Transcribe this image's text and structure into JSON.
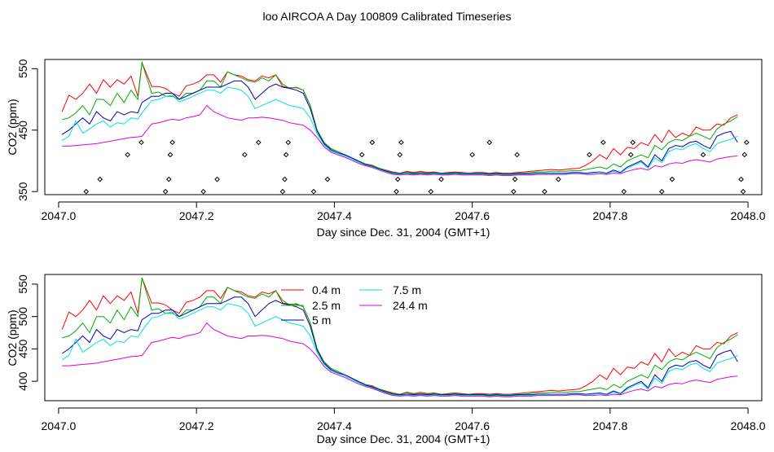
{
  "page": {
    "title": "loo AIRCOA A  Day 100809  Calibrated Timeseries"
  },
  "colors": {
    "h04": "#ff0000",
    "h25": "#00b000",
    "h5": "#0000b0",
    "h75": "#00e0e0",
    "h244": "#e000e0",
    "points": "#000000"
  },
  "chart_data": [
    {
      "type": "line",
      "title": "",
      "xlabel": "Day since Dec. 31, 2004 (GMT+1)",
      "ylabel": "CO2 (ppm)",
      "xlim": [
        2046.98,
        2048.02
      ],
      "ylim": [
        345,
        565
      ],
      "xticks": [
        2047.0,
        2047.2,
        2047.4,
        2047.6,
        2047.8,
        2048.0
      ],
      "xtick_labels": [
        "2047.0",
        "2047.2",
        "2047.4",
        "2047.6",
        "2047.8",
        "2048.0"
      ],
      "yticks": [
        350,
        450,
        550
      ],
      "ytick_labels": [
        "350",
        "450",
        "550"
      ],
      "grid": false,
      "legend": "none",
      "x": [
        2047.005,
        2047.015,
        2047.025,
        2047.035,
        2047.045,
        2047.055,
        2047.065,
        2047.075,
        2047.085,
        2047.095,
        2047.105,
        2047.115,
        2047.121,
        2047.135,
        2047.145,
        2047.155,
        2047.165,
        2047.175,
        2047.185,
        2047.195,
        2047.205,
        2047.215,
        2047.225,
        2047.235,
        2047.245,
        2047.255,
        2047.265,
        2047.275,
        2047.285,
        2047.295,
        2047.305,
        2047.315,
        2047.325,
        2047.335,
        2047.345,
        2047.355,
        2047.365,
        2047.375,
        2047.385,
        2047.395,
        2047.405,
        2047.415,
        2047.425,
        2047.435,
        2047.445,
        2047.455,
        2047.465,
        2047.475,
        2047.485,
        2047.495,
        2047.505,
        2047.515,
        2047.525,
        2047.535,
        2047.545,
        2047.555,
        2047.565,
        2047.575,
        2047.585,
        2047.595,
        2047.605,
        2047.615,
        2047.625,
        2047.635,
        2047.645,
        2047.655,
        2047.665,
        2047.675,
        2047.685,
        2047.695,
        2047.705,
        2047.715,
        2047.725,
        2047.735,
        2047.745,
        2047.755,
        2047.765,
        2047.775,
        2047.785,
        2047.795,
        2047.805,
        2047.815,
        2047.825,
        2047.835,
        2047.845,
        2047.855,
        2047.865,
        2047.875,
        2047.885,
        2047.895,
        2047.905,
        2047.915,
        2047.925,
        2047.935,
        2047.945,
        2047.955,
        2047.965,
        2047.975,
        2047.985
      ],
      "series": [
        {
          "name": "0.4 m",
          "color": "#ff0000",
          "values": [
            480,
            507,
            500,
            510,
            525,
            510,
            532,
            520,
            532,
            525,
            538,
            505,
            560,
            521,
            521,
            518,
            510,
            505,
            522,
            525,
            530,
            540,
            540,
            528,
            545,
            540,
            538,
            532,
            530,
            538,
            535,
            540,
            521,
            519,
            519,
            515,
            490,
            450,
            430,
            420,
            415,
            410,
            405,
            400,
            395,
            393,
            388,
            385,
            382,
            380,
            383,
            381,
            383,
            381,
            382,
            380,
            381,
            382,
            381,
            380,
            381,
            381,
            380,
            381,
            380,
            380,
            381,
            382,
            383,
            384,
            385,
            386,
            385,
            386,
            387,
            388,
            393,
            400,
            410,
            403,
            420,
            410,
            422,
            420,
            430,
            425,
            443,
            430,
            450,
            438,
            445,
            440,
            455,
            450,
            450,
            460,
            458,
            470,
            475
          ]
        },
        {
          "name": "2.5 m",
          "color": "#00b000",
          "values": [
            467,
            470,
            478,
            490,
            475,
            500,
            500,
            490,
            510,
            495,
            515,
            500,
            560,
            510,
            512,
            505,
            505,
            500,
            510,
            510,
            515,
            530,
            530,
            520,
            545,
            540,
            535,
            530,
            528,
            535,
            530,
            540,
            525,
            518,
            520,
            515,
            490,
            450,
            430,
            420,
            415,
            410,
            405,
            400,
            395,
            392,
            388,
            384,
            381,
            380,
            382,
            380,
            381,
            380,
            381,
            380,
            380,
            381,
            380,
            380,
            380,
            380,
            379,
            380,
            379,
            379,
            380,
            380,
            381,
            382,
            382,
            383,
            383,
            383,
            384,
            384,
            386,
            388,
            390,
            387,
            395,
            390,
            400,
            405,
            410,
            405,
            425,
            418,
            430,
            435,
            433,
            440,
            445,
            440,
            435,
            452,
            460,
            465,
            472
          ]
        },
        {
          "name": "5 m",
          "color": "#0000b0",
          "values": [
            443,
            450,
            460,
            470,
            460,
            480,
            470,
            465,
            480,
            475,
            480,
            478,
            495,
            505,
            505,
            510,
            510,
            500,
            505,
            510,
            515,
            520,
            520,
            520,
            525,
            530,
            530,
            520,
            500,
            510,
            520,
            525,
            520,
            518,
            515,
            510,
            485,
            448,
            428,
            418,
            413,
            410,
            405,
            399,
            394,
            391,
            387,
            383,
            380,
            379,
            380,
            379,
            380,
            379,
            380,
            379,
            379,
            380,
            379,
            379,
            379,
            379,
            378,
            379,
            378,
            378,
            379,
            379,
            379,
            380,
            380,
            380,
            380,
            380,
            381,
            381,
            380,
            381,
            382,
            380,
            385,
            381,
            390,
            395,
            400,
            390,
            410,
            400,
            420,
            425,
            423,
            430,
            432,
            425,
            420,
            440,
            445,
            448,
            430
          ]
        },
        {
          "name": "7.5 m",
          "color": "#00e0e0",
          "values": [
            433,
            440,
            465,
            445,
            452,
            460,
            465,
            455,
            462,
            460,
            470,
            468,
            478,
            498,
            500,
            505,
            507,
            496,
            500,
            505,
            510,
            515,
            515,
            510,
            520,
            518,
            515,
            505,
            485,
            490,
            495,
            500,
            495,
            490,
            488,
            485,
            470,
            444,
            426,
            416,
            412,
            408,
            403,
            398,
            393,
            390,
            386,
            382,
            379,
            378,
            379,
            378,
            379,
            378,
            379,
            378,
            378,
            379,
            378,
            378,
            378,
            378,
            377,
            378,
            377,
            377,
            378,
            378,
            378,
            379,
            379,
            379,
            379,
            379,
            380,
            380,
            379,
            380,
            381,
            379,
            383,
            380,
            388,
            393,
            398,
            388,
            405,
            397,
            415,
            420,
            418,
            425,
            428,
            420,
            415,
            428,
            432,
            435,
            440
          ]
        },
        {
          "name": "24.4 m",
          "color": "#e000e0",
          "values": [
            424,
            424,
            425,
            426,
            427,
            428,
            430,
            432,
            434,
            436,
            438,
            439,
            440,
            460,
            462,
            465,
            468,
            466,
            470,
            472,
            475,
            490,
            480,
            475,
            470,
            468,
            466,
            470,
            470,
            471,
            470,
            468,
            466,
            462,
            460,
            458,
            450,
            438,
            423,
            414,
            410,
            406,
            401,
            396,
            392,
            389,
            385,
            381,
            378,
            377,
            378,
            377,
            378,
            377,
            378,
            377,
            377,
            378,
            377,
            377,
            377,
            377,
            376,
            377,
            376,
            376,
            377,
            377,
            377,
            378,
            378,
            378,
            378,
            378,
            379,
            379,
            378,
            378,
            379,
            378,
            380,
            379,
            383,
            386,
            388,
            385,
            392,
            390,
            395,
            397,
            396,
            400,
            402,
            400,
            398,
            403,
            405,
            407,
            408
          ]
        }
      ],
      "points": {
        "x": [
          2047.04,
          2047.06,
          2047.1,
          2047.12,
          2047.155,
          2047.16,
          2047.162,
          2047.165,
          2047.21,
          2047.23,
          2047.27,
          2047.29,
          2047.325,
          2047.328,
          2047.33,
          2047.333,
          2047.37,
          2047.39,
          2047.44,
          2047.455,
          2047.49,
          2047.492,
          2047.495,
          2047.497,
          2047.54,
          2047.555,
          2047.6,
          2047.625,
          2047.66,
          2047.662,
          2047.665,
          2047.705,
          2047.725,
          2047.77,
          2047.79,
          2047.82,
          2047.83,
          2047.833,
          2047.875,
          2047.89,
          2047.935,
          2047.99,
          2047.993,
          2047.995,
          2047.998
        ],
        "values": [
          350,
          370,
          410,
          430,
          350,
          370,
          410,
          430,
          350,
          370,
          410,
          430,
          350,
          370,
          410,
          430,
          350,
          370,
          410,
          430,
          350,
          370,
          410,
          430,
          350,
          370,
          410,
          430,
          350,
          370,
          410,
          350,
          370,
          410,
          430,
          350,
          410,
          430,
          350,
          370,
          410,
          370,
          350,
          410,
          430
        ]
      }
    },
    {
      "type": "line",
      "title": "",
      "xlabel": "Day since Dec. 31, 2004 (GMT+1)",
      "ylabel": "CO2 (ppm)",
      "xlim": [
        2046.98,
        2048.02
      ],
      "ylim": [
        370,
        565
      ],
      "xticks": [
        2047.0,
        2047.2,
        2047.4,
        2047.6,
        2047.8,
        2048.0
      ],
      "xtick_labels": [
        "2047.0",
        "2047.2",
        "2047.4",
        "2047.6",
        "2047.8",
        "2048.0"
      ],
      "yticks": [
        400,
        450,
        500,
        550
      ],
      "ytick_labels": [
        "400",
        "450",
        "500",
        "550"
      ],
      "grid": false,
      "legend": "top-center",
      "legend_entries": [
        {
          "name": "0.4 m",
          "color": "#ff0000"
        },
        {
          "name": "2.5 m",
          "color": "#00b000"
        },
        {
          "name": "5 m",
          "color": "#0000b0"
        },
        {
          "name": "7.5 m",
          "color": "#00e0e0"
        },
        {
          "name": "24.4 m",
          "color": "#e000e0"
        }
      ]
    }
  ]
}
